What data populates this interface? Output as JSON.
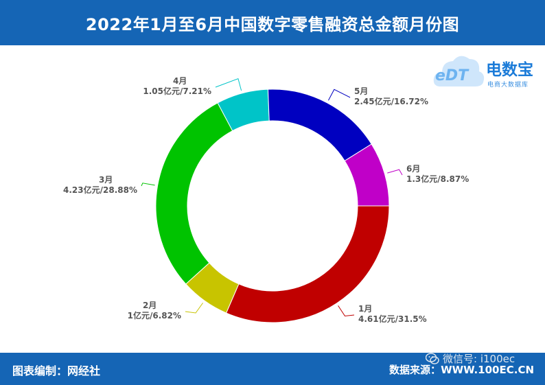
{
  "header": {
    "title": "2022年1月至6月中国数字零售融资总金额月份图"
  },
  "footer": {
    "left": "图表编制：网经社",
    "source_label": "数据来源：",
    "source_url": "WWW.100EC.CN"
  },
  "watermark": {
    "text": "微信号: i100ec",
    "icon": "wechat-icon"
  },
  "logo": {
    "brand": "电数宝",
    "slogan": "电商大数据库",
    "mark": "eDT",
    "icon": "cloud-icon"
  },
  "chart_data": {
    "type": "pie",
    "donut": true,
    "title": "",
    "slices": [
      {
        "label": "1月",
        "value": 4.61,
        "value_label": "4.61亿元/31.5%",
        "color": "#c00000"
      },
      {
        "label": "2月",
        "value": 1,
        "value_label": "1亿元/6.82%",
        "color": "#c8c400"
      },
      {
        "label": "3月",
        "value": 4.23,
        "value_label": "4.23亿元/28.88%",
        "color": "#00c300"
      },
      {
        "label": "4月",
        "value": 1.05,
        "value_label": "1.05亿元/7.21%",
        "color": "#00c4c8"
      },
      {
        "label": "5月",
        "value": 2.45,
        "value_label": "2.45亿元/16.72%",
        "color": "#0000c0"
      },
      {
        "label": "6月",
        "value": 1.3,
        "value_label": "1.3亿元/8.87%",
        "color": "#c000c8"
      }
    ]
  }
}
